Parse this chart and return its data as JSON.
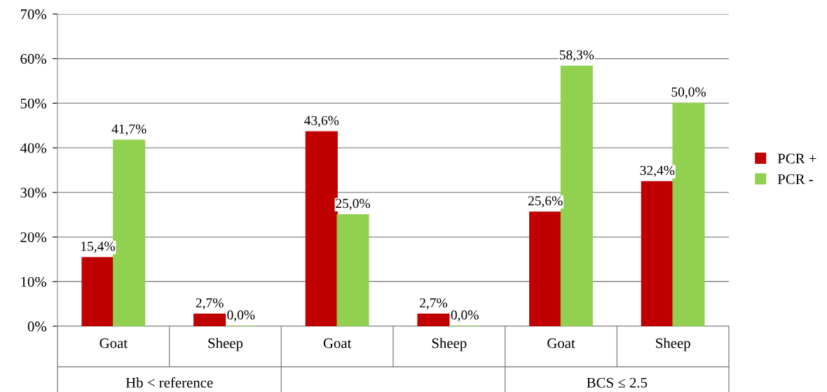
{
  "chart_data": {
    "type": "bar",
    "categories": [
      "Goat",
      "Sheep",
      "Goat",
      "Sheep",
      "Goat",
      "Sheep"
    ],
    "annotations": [
      "Hb < reference",
      null,
      "BCS ≤ 2.5"
    ],
    "series": [
      {
        "name": "PCR +",
        "color": "#c00000",
        "values": [
          15.4,
          2.7,
          43.6,
          2.7,
          25.6,
          32.4
        ],
        "value_labels": [
          "15,4%",
          "2,7%",
          "43,6%",
          "2,7%",
          "25,6%",
          "32,4%"
        ]
      },
      {
        "name": "PCR -",
        "color": "#92d050",
        "values": [
          41.7,
          0.0,
          25.0,
          0.0,
          58.3,
          50.0
        ],
        "value_labels": [
          "41,7%",
          "0,0%",
          "25,0%",
          "0,0%",
          "58,3%",
          "50,0%"
        ]
      }
    ],
    "ylim": [
      0,
      70
    ],
    "yticks": [
      {
        "value": 0,
        "label": "0%"
      },
      {
        "value": 10,
        "label": "10%"
      },
      {
        "value": 20,
        "label": "20%"
      },
      {
        "value": 30,
        "label": "30%"
      },
      {
        "value": 40,
        "label": "40%"
      },
      {
        "value": 50,
        "label": "50%"
      },
      {
        "value": 60,
        "label": "60%"
      },
      {
        "value": 70,
        "label": "70%"
      }
    ],
    "grid": "y",
    "legend": "right"
  }
}
